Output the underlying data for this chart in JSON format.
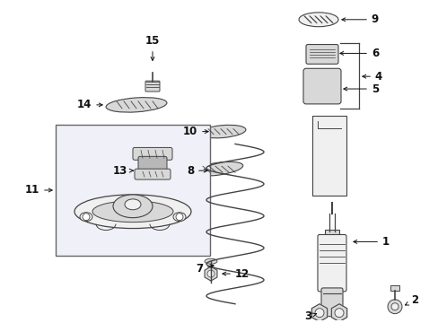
{
  "bg_color": "#ffffff",
  "line_color": "#444444",
  "fill_light": "#f0f0f0",
  "fill_mid": "#d8d8d8",
  "fill_dark": "#b8b8b8",
  "box_fill": "#f0f0f8"
}
